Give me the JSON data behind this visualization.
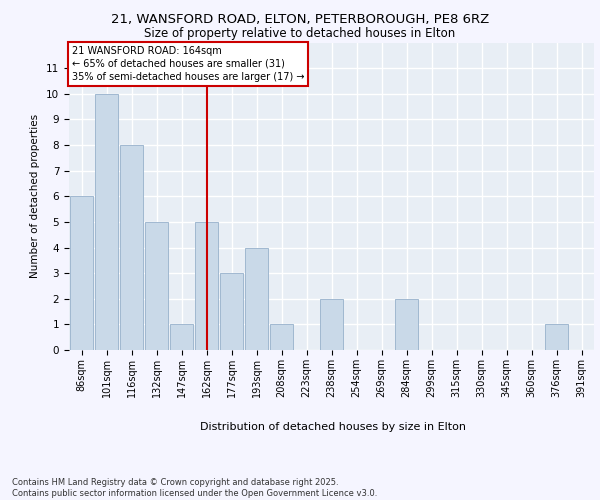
{
  "title1": "21, WANSFORD ROAD, ELTON, PETERBOROUGH, PE8 6RZ",
  "title2": "Size of property relative to detached houses in Elton",
  "xlabel": "Distribution of detached houses by size in Elton",
  "ylabel": "Number of detached properties",
  "categories": [
    "86sqm",
    "101sqm",
    "116sqm",
    "132sqm",
    "147sqm",
    "162sqm",
    "177sqm",
    "193sqm",
    "208sqm",
    "223sqm",
    "238sqm",
    "254sqm",
    "269sqm",
    "284sqm",
    "299sqm",
    "315sqm",
    "330sqm",
    "345sqm",
    "360sqm",
    "376sqm",
    "391sqm"
  ],
  "values": [
    6,
    10,
    8,
    5,
    1,
    5,
    3,
    4,
    1,
    0,
    2,
    0,
    0,
    2,
    0,
    0,
    0,
    0,
    0,
    1,
    0
  ],
  "bar_color": "#c9d9e8",
  "bar_edge_color": "#a0b8d0",
  "vline_x": 5,
  "vline_color": "#cc0000",
  "annotation_text": "21 WANSFORD ROAD: 164sqm\n← 65% of detached houses are smaller (31)\n35% of semi-detached houses are larger (17) →",
  "annotation_box_color": "#ffffff",
  "annotation_box_edge": "#cc0000",
  "ylim": [
    0,
    12
  ],
  "yticks": [
    0,
    1,
    2,
    3,
    4,
    5,
    6,
    7,
    8,
    9,
    10,
    11,
    12
  ],
  "plot_bg_color": "#e8eef5",
  "grid_color": "#ffffff",
  "fig_bg_color": "#f5f5ff",
  "footer": "Contains HM Land Registry data © Crown copyright and database right 2025.\nContains public sector information licensed under the Open Government Licence v3.0."
}
